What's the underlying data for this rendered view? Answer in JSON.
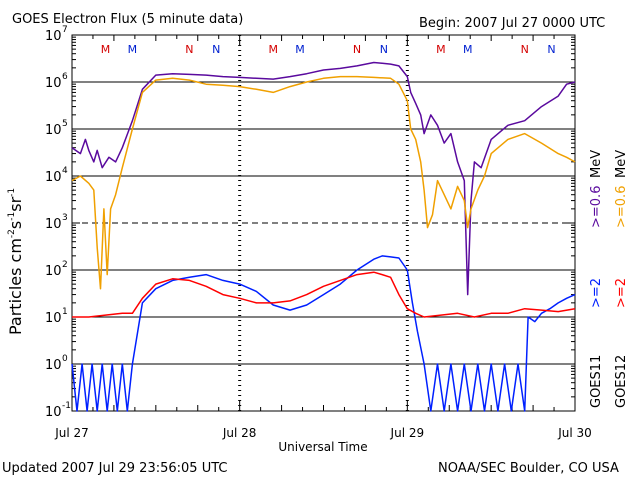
{
  "header": {
    "title": "GOES Electron Flux (5 minute data)",
    "begin": "Begin: 2007 Jul 27 0000 UTC"
  },
  "footer": {
    "updated": "Updated 2007 Jul 29 23:56:05 UTC",
    "credit": "NOAA/SEC Boulder, CO USA"
  },
  "chart_data": {
    "type": "line",
    "title": "GOES Electron Flux (5 minute data)",
    "xlabel": "Universal Time",
    "ylabel": "Particles cm-2s-1sr-1",
    "ylabel_parts": {
      "main": "Particles cm",
      "e1": "-2",
      "s": "s",
      "e2": "-1",
      "sr": "sr",
      "e3": "-1"
    },
    "y_scale": "log",
    "ylim": [
      0.1,
      10000000
    ],
    "y_ticks": [
      {
        "value": 0.1,
        "base": "10",
        "exp": "-1"
      },
      {
        "value": 1,
        "base": "10",
        "exp": "0"
      },
      {
        "value": 10,
        "base": "10",
        "exp": "1"
      },
      {
        "value": 100,
        "base": "10",
        "exp": "2"
      },
      {
        "value": 1000,
        "base": "10",
        "exp": "3"
      },
      {
        "value": 10000,
        "base": "10",
        "exp": "4"
      },
      {
        "value": 100000,
        "base": "10",
        "exp": "5"
      },
      {
        "value": 1000000,
        "base": "10",
        "exp": "6"
      },
      {
        "value": 10000000,
        "base": "10",
        "exp": "7"
      }
    ],
    "xlim": [
      0,
      3
    ],
    "x_ticks": [
      {
        "value": 0,
        "label": "Jul 27"
      },
      {
        "value": 1,
        "label": "Jul 28"
      },
      {
        "value": 2,
        "label": "Jul 29"
      },
      {
        "value": 3,
        "label": "Jul 30"
      }
    ],
    "midnight_markers": [
      {
        "label": "M",
        "x": 0.2,
        "color": "#d40000"
      },
      {
        "label": "M",
        "x": 0.36,
        "color": "#0020d0"
      },
      {
        "label": "N",
        "x": 0.7,
        "color": "#d40000"
      },
      {
        "label": "N",
        "x": 0.86,
        "color": "#0020d0"
      },
      {
        "label": "M",
        "x": 1.2,
        "color": "#d40000"
      },
      {
        "label": "M",
        "x": 1.36,
        "color": "#0020d0"
      },
      {
        "label": "N",
        "x": 1.7,
        "color": "#d40000"
      },
      {
        "label": "N",
        "x": 1.86,
        "color": "#0020d0"
      },
      {
        "label": "M",
        "x": 2.2,
        "color": "#d40000"
      },
      {
        "label": "M",
        "x": 2.36,
        "color": "#0020d0"
      },
      {
        "label": "N",
        "x": 2.7,
        "color": "#d40000"
      },
      {
        "label": "N",
        "x": 2.86,
        "color": "#0020d0"
      }
    ],
    "right_legend": {
      "goes12": "GOES12",
      "goes11": "GOES11",
      "gt2_goes12": ">=2",
      "gt06_goes12": ">=0.6",
      "gt2_goes11": ">=2",
      "gt06_goes11": ">=0.6",
      "unit_top": "MeV",
      "unit_bottom": "MeV"
    },
    "series": [
      {
        "name": "GOES11 >=0.6 MeV",
        "color": "#5a0a9e",
        "x": [
          0,
          0.05,
          0.08,
          0.1,
          0.13,
          0.15,
          0.18,
          0.22,
          0.26,
          0.3,
          0.36,
          0.42,
          0.5,
          0.6,
          0.7,
          0.8,
          0.9,
          1.0,
          1.1,
          1.2,
          1.3,
          1.4,
          1.5,
          1.6,
          1.7,
          1.8,
          1.85,
          1.9,
          1.95,
          2.0,
          2.02,
          2.05,
          2.08,
          2.1,
          2.14,
          2.18,
          2.22,
          2.26,
          2.3,
          2.34,
          2.36,
          2.38,
          2.4,
          2.44,
          2.5,
          2.6,
          2.7,
          2.8,
          2.9,
          2.95,
          3.0
        ],
        "y": [
          40000,
          30000,
          60000,
          35000,
          20000,
          35000,
          15000,
          25000,
          20000,
          40000,
          150000,
          700000,
          1400000,
          1500000,
          1450000,
          1400000,
          1300000,
          1250000,
          1200000,
          1150000,
          1300000,
          1500000,
          1800000,
          1950000,
          2200000,
          2600000,
          2500000,
          2400000,
          2200000,
          1300000,
          600000,
          350000,
          200000,
          80000,
          200000,
          120000,
          50000,
          80000,
          20000,
          8000,
          30,
          3000,
          20000,
          15000,
          60000,
          120000,
          150000,
          300000,
          500000,
          900000,
          1000000
        ]
      },
      {
        "name": "GOES12 >=0.6 MeV",
        "color": "#f0a000",
        "x": [
          0,
          0.05,
          0.1,
          0.13,
          0.15,
          0.17,
          0.19,
          0.21,
          0.23,
          0.26,
          0.3,
          0.36,
          0.42,
          0.5,
          0.6,
          0.7,
          0.8,
          0.9,
          1.0,
          1.1,
          1.2,
          1.3,
          1.4,
          1.5,
          1.6,
          1.7,
          1.8,
          1.9,
          1.95,
          2.0,
          2.02,
          2.05,
          2.08,
          2.1,
          2.12,
          2.15,
          2.18,
          2.22,
          2.26,
          2.3,
          2.34,
          2.36,
          2.38,
          2.42,
          2.46,
          2.5,
          2.6,
          2.7,
          2.8,
          2.9,
          2.95,
          3.0
        ],
        "y": [
          8000,
          10000,
          7000,
          5000,
          300,
          40,
          2000,
          80,
          2000,
          4000,
          15000,
          100000,
          600000,
          1100000,
          1200000,
          1100000,
          900000,
          850000,
          800000,
          700000,
          600000,
          800000,
          1000000,
          1200000,
          1300000,
          1300000,
          1250000,
          1200000,
          900000,
          400000,
          100000,
          60000,
          20000,
          5000,
          800,
          1500,
          8000,
          4000,
          2000,
          6000,
          3000,
          800,
          2000,
          5000,
          10000,
          30000,
          60000,
          80000,
          50000,
          30000,
          25000,
          20000
        ]
      },
      {
        "name": "GOES11 >=2 MeV",
        "color": "#0020ff",
        "x": [
          0,
          0.03,
          0.06,
          0.09,
          0.12,
          0.15,
          0.18,
          0.21,
          0.24,
          0.27,
          0.3,
          0.33,
          0.36,
          0.42,
          0.5,
          0.6,
          0.7,
          0.8,
          0.9,
          1.0,
          1.1,
          1.2,
          1.3,
          1.4,
          1.5,
          1.6,
          1.7,
          1.8,
          1.85,
          1.9,
          1.95,
          2.0,
          2.03,
          2.06,
          2.1,
          2.14,
          2.18,
          2.22,
          2.26,
          2.3,
          2.34,
          2.38,
          2.42,
          2.46,
          2.5,
          2.54,
          2.58,
          2.62,
          2.66,
          2.7,
          2.72,
          2.76,
          2.8,
          2.85,
          2.9,
          2.95,
          3.0
        ],
        "y": [
          1,
          0.1,
          1,
          0.1,
          1,
          0.1,
          1,
          0.1,
          1,
          0.1,
          1,
          0.1,
          1,
          20,
          40,
          60,
          70,
          80,
          60,
          50,
          35,
          18,
          14,
          18,
          30,
          50,
          100,
          170,
          200,
          190,
          180,
          100,
          20,
          5,
          1,
          0.1,
          1,
          0.1,
          1,
          0.1,
          1,
          0.1,
          1,
          0.1,
          1,
          0.1,
          1,
          0.1,
          1,
          0.1,
          10,
          8,
          12,
          15,
          20,
          25,
          30
        ]
      },
      {
        "name": "GOES12 >=2 MeV",
        "color": "#ff0000",
        "x": [
          0,
          0.1,
          0.2,
          0.3,
          0.36,
          0.42,
          0.5,
          0.6,
          0.7,
          0.8,
          0.9,
          1.0,
          1.1,
          1.2,
          1.3,
          1.4,
          1.5,
          1.6,
          1.7,
          1.8,
          1.85,
          1.9,
          1.95,
          2.0,
          2.05,
          2.1,
          2.2,
          2.3,
          2.4,
          2.5,
          2.6,
          2.7,
          2.8,
          2.9,
          3.0
        ],
        "y": [
          10,
          10,
          11,
          12,
          12,
          25,
          50,
          65,
          60,
          45,
          30,
          25,
          20,
          20,
          22,
          30,
          45,
          60,
          80,
          90,
          80,
          70,
          30,
          15,
          12,
          10,
          11,
          12,
          10,
          12,
          12,
          15,
          14,
          13,
          15
        ]
      }
    ]
  }
}
